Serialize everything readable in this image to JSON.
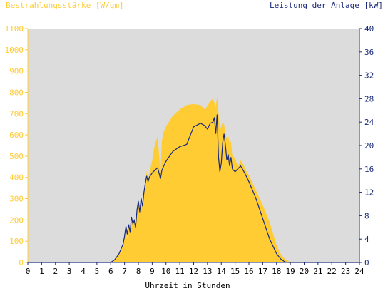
{
  "chart_data": {
    "type": "area",
    "left_axis_title": "Bestrahlungsstärke [W/qm]",
    "right_axis_title": "Leistung der Anlage [kW]",
    "xlabel": "Uhrzeit in Stunden",
    "x_ticks": [
      "0",
      "1",
      "2",
      "3",
      "4",
      "5",
      "6",
      "7",
      "8",
      "9",
      "10",
      "11",
      "12",
      "13",
      "14",
      "15",
      "16",
      "17",
      "18",
      "19",
      "20",
      "21",
      "22",
      "23",
      "24"
    ],
    "y_left_ticks": [
      "0",
      "100",
      "200",
      "300",
      "400",
      "500",
      "600",
      "700",
      "800",
      "900",
      "1000",
      "1100"
    ],
    "y_right_ticks": [
      "0",
      "4",
      "8",
      "12",
      "16",
      "20",
      "24",
      "28",
      "32",
      "36",
      "40"
    ],
    "xlim": [
      0,
      24
    ],
    "ylim_left": [
      0,
      1100
    ],
    "ylim_right": [
      0,
      40
    ],
    "grid": false,
    "colors": {
      "irradiance": "#ffcc33",
      "power": "#1a2a7a",
      "plot_bg": "#dcdcdc",
      "left_axis": "#ffcc33",
      "right_axis": "#1a2a7a"
    },
    "series": [
      {
        "name": "Bestrahlungsstärke",
        "axis": "left",
        "style": "area",
        "x": [
          0,
          6.0,
          6.3,
          6.6,
          6.9,
          7.0,
          7.1,
          7.2,
          7.3,
          7.4,
          7.5,
          7.6,
          7.7,
          7.8,
          7.9,
          8.0,
          8.1,
          8.2,
          8.3,
          8.4,
          8.5,
          8.6,
          8.7,
          8.8,
          9.0,
          9.2,
          9.4,
          9.6,
          9.7,
          9.8,
          10.0,
          10.5,
          11.0,
          11.5,
          12.0,
          12.5,
          12.8,
          13.0,
          13.2,
          13.4,
          13.5,
          13.6,
          13.7,
          13.8,
          13.9,
          14.0,
          14.1,
          14.2,
          14.3,
          14.4,
          14.5,
          14.6,
          14.7,
          14.8,
          15.0,
          15.2,
          15.4,
          15.6,
          15.8,
          16.0,
          16.5,
          17.0,
          17.5,
          18.0,
          18.3,
          18.6,
          18.9,
          19.2,
          24
        ],
        "y": [
          0,
          0,
          15,
          40,
          80,
          120,
          150,
          110,
          170,
          140,
          210,
          180,
          200,
          160,
          240,
          280,
          230,
          300,
          260,
          320,
          370,
          430,
          390,
          420,
          480,
          560,
          590,
          420,
          570,
          610,
          640,
          690,
          720,
          740,
          745,
          740,
          720,
          735,
          760,
          770,
          750,
          730,
          780,
          700,
          620,
          640,
          660,
          650,
          610,
          580,
          600,
          560,
          570,
          500,
          490,
          450,
          480,
          460,
          430,
          410,
          340,
          270,
          190,
          80,
          40,
          15,
          5,
          0,
          0
        ]
      },
      {
        "name": "Leistung der Anlage",
        "axis": "right",
        "style": "line",
        "x": [
          0,
          6.0,
          6.3,
          6.6,
          6.9,
          7.0,
          7.1,
          7.2,
          7.3,
          7.4,
          7.5,
          7.6,
          7.7,
          7.8,
          7.9,
          8.0,
          8.1,
          8.2,
          8.3,
          8.4,
          8.5,
          8.6,
          8.7,
          8.8,
          9.0,
          9.2,
          9.4,
          9.6,
          9.7,
          9.8,
          10.0,
          10.5,
          11.0,
          11.5,
          12.0,
          12.5,
          12.8,
          13.0,
          13.2,
          13.4,
          13.5,
          13.6,
          13.7,
          13.8,
          13.9,
          14.0,
          14.1,
          14.2,
          14.3,
          14.4,
          14.5,
          14.6,
          14.7,
          14.8,
          15.0,
          15.2,
          15.4,
          15.6,
          15.8,
          16.0,
          16.5,
          17.0,
          17.5,
          18.0,
          18.3,
          18.6,
          18.9,
          19.2,
          24
        ],
        "y": [
          0,
          0,
          0.5,
          1.5,
          3.2,
          4.5,
          6.2,
          4.8,
          6.5,
          5.2,
          7.8,
          6.6,
          7.2,
          6.0,
          9.0,
          10.5,
          8.6,
          11.0,
          9.6,
          12.0,
          13.5,
          14.8,
          13.8,
          14.6,
          15.3,
          15.8,
          16.2,
          14.3,
          15.7,
          16.3,
          17.3,
          19.0,
          19.8,
          20.2,
          23.2,
          23.8,
          23.4,
          22.8,
          23.8,
          24.0,
          24.8,
          22.0,
          25.3,
          18.0,
          15.5,
          17.0,
          20.5,
          22.0,
          20.0,
          17.5,
          18.5,
          16.5,
          18.0,
          16.0,
          15.5,
          16.0,
          16.5,
          15.7,
          14.8,
          13.8,
          11.0,
          7.5,
          4.0,
          1.5,
          0.6,
          0.1,
          0,
          0,
          0
        ]
      }
    ]
  }
}
